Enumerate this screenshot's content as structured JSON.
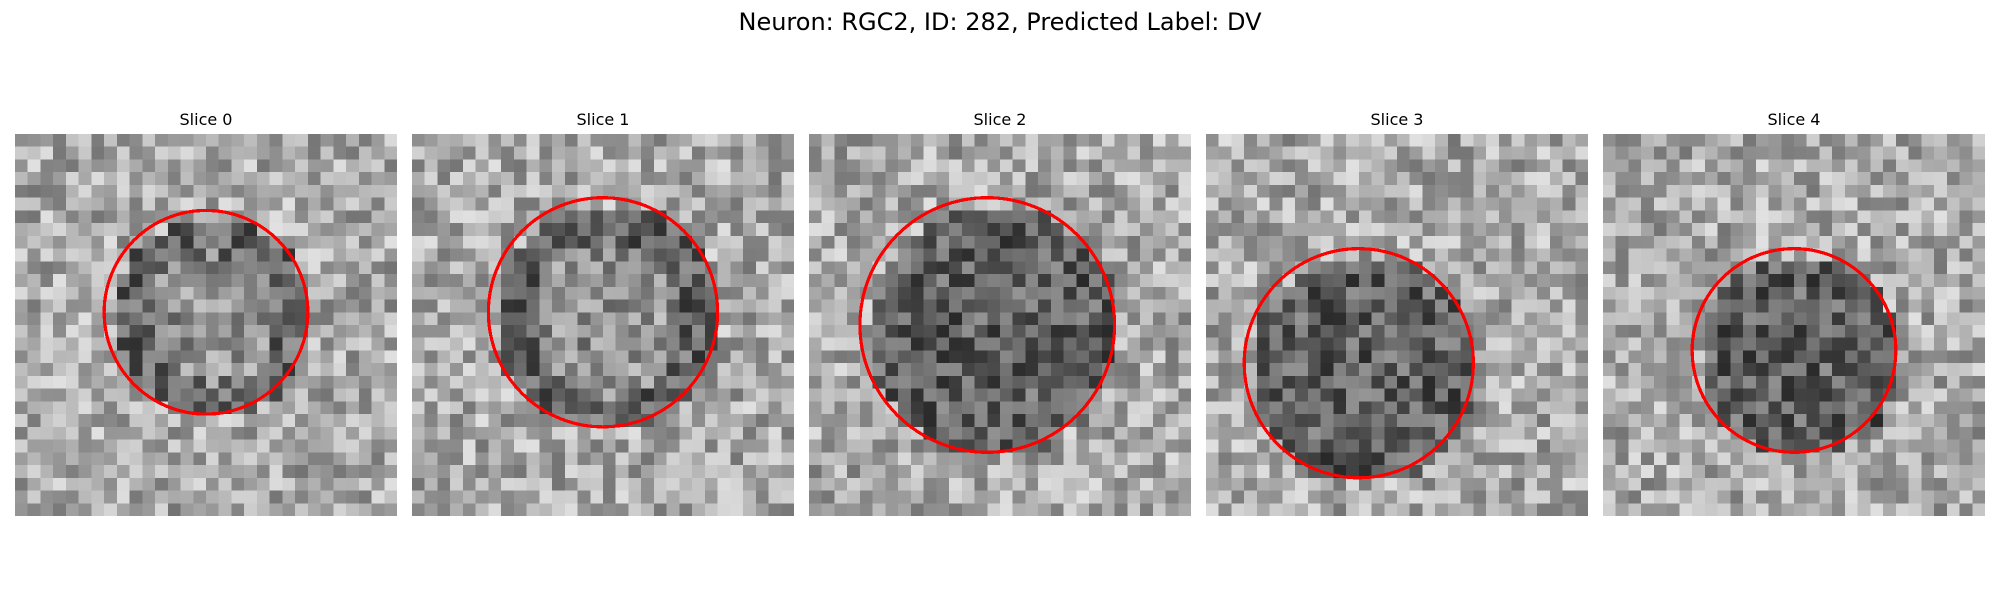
{
  "figure": {
    "title": "Neuron: RGC2, ID: 282, Predicted Label: DV"
  },
  "panels": [
    {
      "title": "Slice 0"
    },
    {
      "title": "Slice 1"
    },
    {
      "title": "Slice 2"
    },
    {
      "title": "Slice 3"
    },
    {
      "title": "Slice 4"
    }
  ],
  "colors": {
    "contour": "#ff0000"
  }
}
